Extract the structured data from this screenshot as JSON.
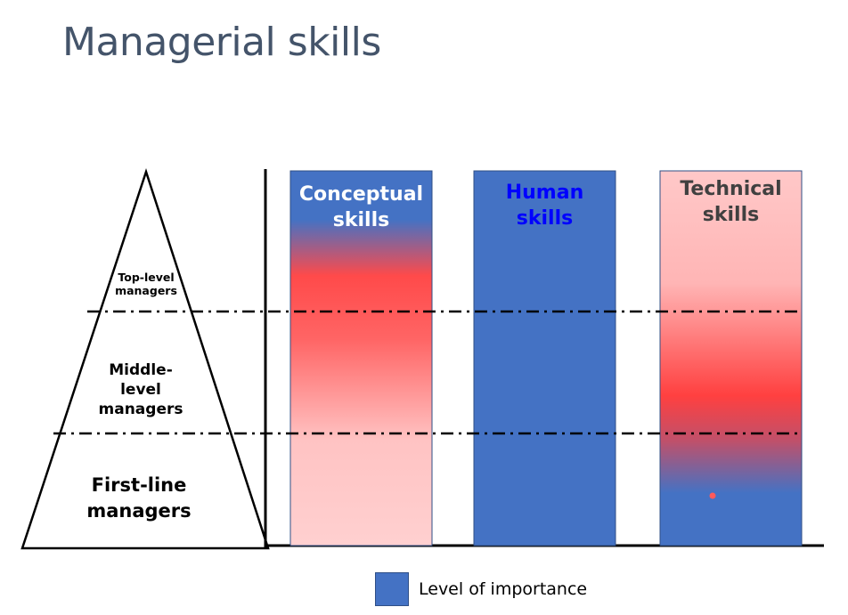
{
  "title": "Managerial skills",
  "pyramid": {
    "levels": [
      {
        "label_lines": [
          "Top-level",
          "managers"
        ]
      },
      {
        "label_lines": [
          "Middle-",
          "level",
          "managers"
        ]
      },
      {
        "label_lines": [
          "First-line",
          "managers"
        ]
      }
    ]
  },
  "columns": [
    {
      "label_lines": [
        "Conceptual",
        "skills"
      ],
      "label_color": "#ffffff"
    },
    {
      "label_lines": [
        "Human",
        "skills"
      ],
      "label_color": "#0000ff"
    },
    {
      "label_lines": [
        "Technical",
        "skills"
      ],
      "label_color": "#404040"
    }
  ],
  "legend": {
    "label": "Level of importance",
    "color": "#4472c4"
  },
  "colors": {
    "importance_blue": "#4472c4",
    "high": "#ff4040",
    "low": "#ffc8c8"
  }
}
